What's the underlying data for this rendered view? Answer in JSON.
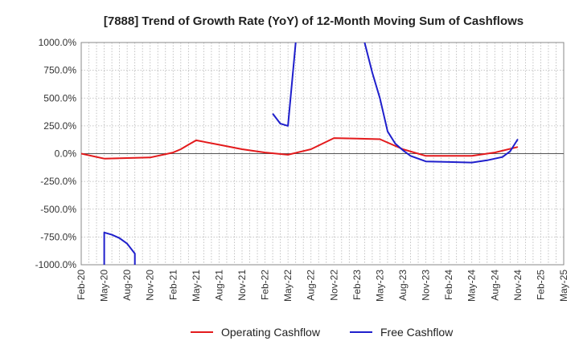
{
  "chart_data": {
    "type": "line",
    "title": "[7888]  Trend of Growth Rate (YoY) of 12-Month Moving Sum of Cashflows",
    "xlabel": "",
    "ylabel": "",
    "ylim": [
      -1000,
      1000
    ],
    "y_ticks": [
      1000,
      750,
      500,
      250,
      0,
      -250,
      -500,
      -750,
      -1000
    ],
    "y_tick_labels": [
      "1000.0%",
      "750.0%",
      "500.0%",
      "250.0%",
      "0.0%",
      "-250.0%",
      "-500.0%",
      "-750.0%",
      "-1000.0%"
    ],
    "x_tick_labels": [
      "Feb-20",
      "May-20",
      "Aug-20",
      "Nov-20",
      "Feb-21",
      "May-21",
      "Aug-21",
      "Nov-21",
      "Feb-22",
      "May-22",
      "Aug-22",
      "Nov-22",
      "Feb-23",
      "May-23",
      "Aug-23",
      "Nov-23",
      "Feb-24",
      "May-24",
      "Aug-24",
      "Nov-24",
      "Feb-25",
      "May-25"
    ],
    "grid": true,
    "legend_position": "bottom",
    "series": [
      {
        "name": "Operating Cashflow",
        "color": "#e31a1c",
        "points": [
          [
            "Feb-20",
            0
          ],
          [
            "May-20",
            -45
          ],
          [
            "Aug-20",
            -40
          ],
          [
            "Nov-20",
            -35
          ],
          [
            "Feb-21",
            10
          ],
          [
            "Mar-21",
            40
          ],
          [
            "Apr-21",
            80
          ],
          [
            "May-21",
            120
          ],
          [
            "Aug-21",
            80
          ],
          [
            "Nov-21",
            40
          ],
          [
            "Feb-22",
            10
          ],
          [
            "May-22",
            -10
          ],
          [
            "Aug-22",
            40
          ],
          [
            "Nov-22",
            140
          ],
          [
            "Feb-23",
            135
          ],
          [
            "May-23",
            130
          ],
          [
            "Aug-23",
            40
          ],
          [
            "Nov-23",
            -20
          ],
          [
            "Feb-24",
            -20
          ],
          [
            "May-24",
            -20
          ],
          [
            "Aug-24",
            10
          ],
          [
            "Nov-24",
            60
          ]
        ]
      },
      {
        "name": "Free Cashflow",
        "color": "#1f1fcc",
        "segments": [
          [
            [
              "May-20",
              -1000
            ],
            [
              "May-20",
              -710
            ],
            [
              "Jun-20",
              -730
            ],
            [
              "Jul-20",
              -760
            ],
            [
              "Aug-20",
              -810
            ],
            [
              "Sep-20",
              -900
            ],
            [
              "Sep-20",
              -1000
            ]
          ],
          [
            [
              "Mar-22",
              360
            ],
            [
              "Apr-22",
              270
            ],
            [
              "May-22",
              250
            ],
            [
              "Jun-22",
              1000
            ]
          ],
          [
            [
              "Mar-23",
              1000
            ],
            [
              "Apr-23",
              730
            ],
            [
              "May-23",
              500
            ],
            [
              "Jun-23",
              200
            ],
            [
              "Jul-23",
              90
            ],
            [
              "Aug-23",
              30
            ],
            [
              "Sep-23",
              -20
            ],
            [
              "Nov-23",
              -70
            ],
            [
              "Feb-24",
              -75
            ],
            [
              "May-24",
              -80
            ],
            [
              "Jul-24",
              -60
            ],
            [
              "Sep-24",
              -30
            ],
            [
              "Oct-24",
              20
            ],
            [
              "Nov-24",
              130
            ]
          ]
        ]
      }
    ]
  }
}
